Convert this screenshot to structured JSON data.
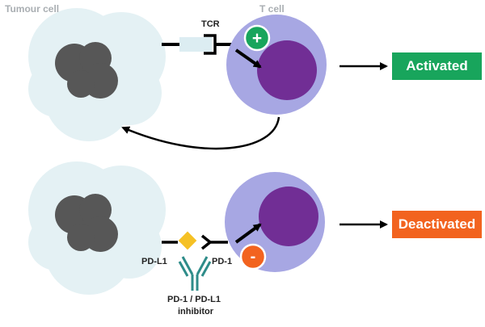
{
  "labels": {
    "tumour_cell": "Tumour cell",
    "t_cell": "T cell",
    "tcr": "TCR",
    "pd_l1": "PD-L1",
    "pd_1": "PD-1",
    "inhibitor_line1": "PD-1 / PD-L1",
    "inhibitor_line2": "inhibitor"
  },
  "status": {
    "activated": "Activated",
    "deactivated": "Deactivated"
  },
  "badges": {
    "plus": "+",
    "minus": "-"
  },
  "colors": {
    "tumour_cell": "#e4f1f4",
    "tumour_nucleus": "#575757",
    "t_cell": "#a7a7e3",
    "t_cell_nucleus": "#712e95",
    "receptor": "#000000",
    "tcr_antigen": "#dcedf2",
    "pd_l1_ligand": "#f5c125",
    "antibody": "#2e8c89",
    "activated": "#18a55c",
    "deactivated": "#f2631f",
    "plus_badge": "#18a55c",
    "minus_badge": "#f2631f"
  },
  "icons": {
    "activation_arrow": "arrow-icon",
    "feedback_arrow": "curved-arrow-icon"
  }
}
